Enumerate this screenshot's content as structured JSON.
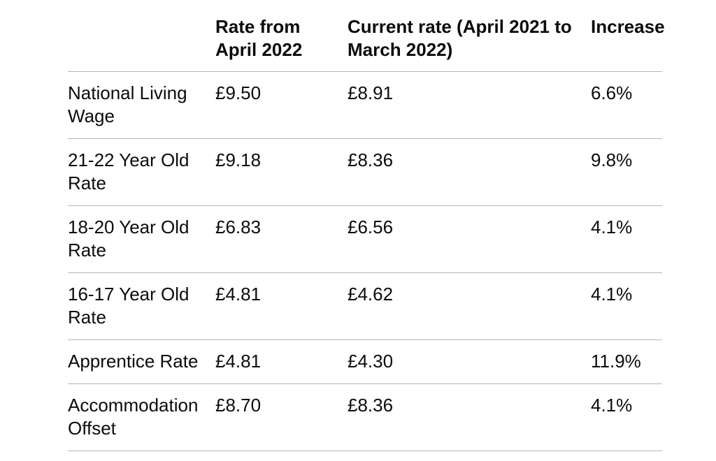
{
  "page": {
    "background": "#ffffff"
  },
  "colors": {
    "text": "#0b0c0c",
    "divider": "#b1b4b6",
    "background": "#ffffff"
  },
  "table": {
    "headers": {
      "row_label": "",
      "rate_from": "Rate from April 2022",
      "current_rate": "Current rate (April 2021 to March 2022)",
      "increase": "Increase"
    },
    "rows": [
      {
        "label": "National Living Wage",
        "rate_from": "£9.50",
        "current_rate": "£8.91",
        "increase": "6.6%"
      },
      {
        "label": "21-22 Year Old Rate",
        "rate_from": "£9.18",
        "current_rate": "£8.36",
        "increase": "9.8%"
      },
      {
        "label": "18-20 Year Old Rate",
        "rate_from": "£6.83",
        "current_rate": "£6.56",
        "increase": "4.1%"
      },
      {
        "label": "16-17 Year Old Rate",
        "rate_from": "£4.81",
        "current_rate": "£4.62",
        "increase": "4.1%"
      },
      {
        "label": "Apprentice Rate",
        "rate_from": "£4.81",
        "current_rate": "£4.30",
        "increase": "11.9%"
      },
      {
        "label": "Accommodation Offset",
        "rate_from": "£8.70",
        "current_rate": "£8.36",
        "increase": "4.1%"
      }
    ]
  },
  "chart_data": {
    "type": "table",
    "columns": [
      "",
      "Rate from April 2022",
      "Current rate (April 2021 to March 2022)",
      "Increase"
    ],
    "rows": [
      [
        "National Living Wage",
        "£9.50",
        "£8.91",
        "6.6%"
      ],
      [
        "21-22 Year Old Rate",
        "£9.18",
        "£8.36",
        "9.8%"
      ],
      [
        "18-20 Year Old Rate",
        "£6.83",
        "£6.56",
        "4.1%"
      ],
      [
        "16-17 Year Old Rate",
        "£4.81",
        "£4.62",
        "4.1%"
      ],
      [
        "Apprentice Rate",
        "£4.81",
        "£4.30",
        "11.9%"
      ],
      [
        "Accommodation Offset",
        "£8.70",
        "£8.36",
        "4.1%"
      ]
    ],
    "numeric": {
      "categories": [
        "National Living Wage",
        "21-22 Year Old Rate",
        "18-20 Year Old Rate",
        "16-17 Year Old Rate",
        "Apprentice Rate",
        "Accommodation Offset"
      ],
      "rate_from_april_2022_gbp": [
        9.5,
        9.18,
        6.83,
        4.81,
        4.81,
        8.7
      ],
      "current_rate_april_2021_to_march_2022_gbp": [
        8.91,
        8.36,
        6.56,
        4.62,
        4.3,
        8.36
      ],
      "increase_percent": [
        6.6,
        9.8,
        4.1,
        4.1,
        11.9,
        4.1
      ]
    }
  }
}
